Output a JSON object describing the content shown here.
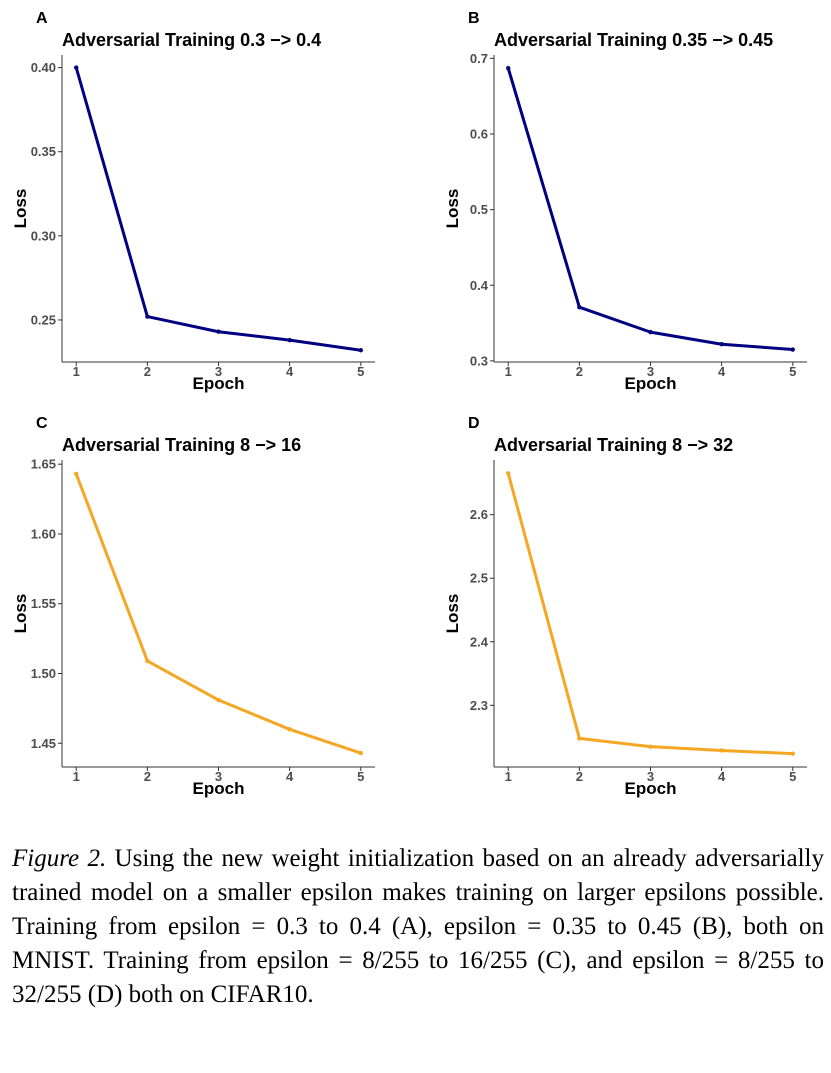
{
  "chart_data": [
    {
      "id": "A",
      "type": "line",
      "panel_letter": "A",
      "title": "Adversarial Training 0.3 −> 0.4",
      "xlabel": "Epoch",
      "ylabel": "Loss",
      "x": [
        1,
        2,
        3,
        4,
        5
      ],
      "values": [
        0.4,
        0.252,
        0.243,
        0.238,
        0.232
      ],
      "xlim": [
        0.8,
        5.2
      ],
      "ylim": [
        0.225,
        0.4075
      ],
      "yticks": [
        0.25,
        0.3,
        0.35,
        0.4
      ],
      "ytick_labels": [
        "0.25",
        "0.30",
        "0.35",
        "0.40"
      ],
      "xtick_labels": [
        "1",
        "2",
        "3",
        "4",
        "5"
      ],
      "color": "#000080",
      "grid": false
    },
    {
      "id": "B",
      "type": "line",
      "panel_letter": "B",
      "title": "Adversarial Training 0.35 −> 0.45",
      "xlabel": "Epoch",
      "ylabel": "Loss",
      "x": [
        1,
        2,
        3,
        4,
        5
      ],
      "values": [
        0.687,
        0.371,
        0.338,
        0.322,
        0.315
      ],
      "xlim": [
        0.8,
        5.2
      ],
      "ylim": [
        0.2985,
        0.7045
      ],
      "yticks": [
        0.3,
        0.4,
        0.5,
        0.6,
        0.7
      ],
      "ytick_labels": [
        "0.3",
        "0.4",
        "0.5",
        "0.6",
        "0.7"
      ],
      "xtick_labels": [
        "1",
        "2",
        "3",
        "4",
        "5"
      ],
      "color": "#000080",
      "grid": false
    },
    {
      "id": "C",
      "type": "line",
      "panel_letter": "C",
      "title": "Adversarial Training 8 −> 16",
      "xlabel": "Epoch",
      "ylabel": "Loss",
      "x": [
        1,
        2,
        3,
        4,
        5
      ],
      "values": [
        1.643,
        1.509,
        1.481,
        1.46,
        1.443
      ],
      "xlim": [
        0.8,
        5.2
      ],
      "ylim": [
        1.433,
        1.653
      ],
      "yticks": [
        1.45,
        1.5,
        1.55,
        1.6,
        1.65
      ],
      "ytick_labels": [
        "1.45",
        "1.50",
        "1.55",
        "1.60",
        "1.65"
      ],
      "xtick_labels": [
        "1",
        "2",
        "3",
        "4",
        "5"
      ],
      "color": "#f5a623",
      "grid": false
    },
    {
      "id": "D",
      "type": "line",
      "panel_letter": "D",
      "title": "Adversarial Training 8 −> 32",
      "xlabel": "Epoch",
      "ylabel": "Loss",
      "x": [
        1,
        2,
        3,
        4,
        5
      ],
      "values": [
        2.665,
        2.248,
        2.235,
        2.229,
        2.224
      ],
      "xlim": [
        0.8,
        5.2
      ],
      "ylim": [
        2.203,
        2.686
      ],
      "yticks": [
        2.3,
        2.4,
        2.5,
        2.6
      ],
      "ytick_labels": [
        "2.3",
        "2.4",
        "2.5",
        "2.6"
      ],
      "xtick_labels": [
        "1",
        "2",
        "3",
        "4",
        "5"
      ],
      "color": "#f5a623",
      "grid": false
    }
  ],
  "caption": {
    "label": "Figure 2.",
    "text": " Using the new weight initialization based on an already adversarially trained model on a smaller epsilon makes training on larger epsilons possible. Training from epsilon = 0.3 to 0.4 (A), epsilon = 0.35 to 0.45 (B), both on MNIST. Training from epsilon = 8/255 to 16/255 (C), and epsilon = 8/255 to 32/255 (D) both on CIFAR10."
  }
}
